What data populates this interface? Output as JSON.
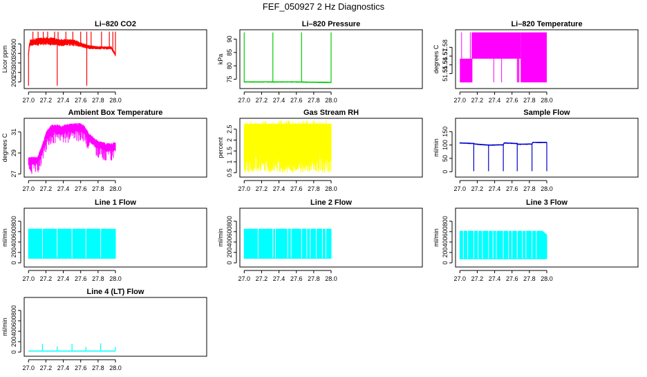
{
  "figure_title": "FEF_050927  2 Hz Diagnostics",
  "chart_data": [
    {
      "type": "line",
      "title": "Li–820 CO2",
      "xlabel": "",
      "ylabel": "Licor ppm",
      "xlim": [
        26.95,
        29.05
      ],
      "ylim": [
        165,
        475
      ],
      "xticks": [
        "27.0",
        "27.2",
        "27.4",
        "27.6",
        "27.8",
        "28.0"
      ],
      "yticks": [
        200,
        250,
        300,
        350,
        400
      ],
      "color": "#ff0000",
      "series": [
        {
          "name": "CO2",
          "x": [
            27.0,
            27.01,
            27.02,
            27.04,
            27.1,
            27.2,
            27.3,
            27.35,
            27.45,
            27.55,
            27.6,
            27.7,
            27.8,
            27.9,
            27.95,
            28.0
          ],
          "y": [
            350,
            395,
            410,
            412,
            415,
            418,
            416,
            410,
            412,
            408,
            398,
            385,
            382,
            380,
            382,
            345
          ],
          "band": [
            12,
            15,
            20,
            22,
            25,
            25,
            25,
            22,
            22,
            20,
            16,
            12,
            10,
            10,
            10,
            10
          ],
          "spikes_up": [
            27.05,
            27.11,
            27.17,
            27.22,
            27.3,
            27.34,
            27.43,
            27.51,
            27.6,
            27.67,
            27.72,
            27.84,
            27.93,
            27.97,
            28.0
          ],
          "spikes_up_top": 465,
          "spikes_down": [
            27.0,
            27.33,
            27.67
          ],
          "spikes_down_bottom": 180
        }
      ]
    },
    {
      "type": "line",
      "title": "Li–820 Pressure",
      "xlabel": "",
      "ylabel": "kPa",
      "xlim": [
        26.95,
        29.05
      ],
      "ylim": [
        71.5,
        93.5
      ],
      "xticks": [
        "27.0",
        "27.2",
        "27.4",
        "27.6",
        "27.8",
        "28.0"
      ],
      "yticks": [
        75,
        80,
        85,
        90
      ],
      "color": "#00cc00",
      "series": [
        {
          "name": "Pressure",
          "x": [
            27.0,
            27.2,
            27.4,
            27.6,
            27.8,
            28.0
          ],
          "y": [
            74.0,
            74.0,
            74.0,
            74.0,
            73.9,
            73.8
          ],
          "band": [
            0.3,
            0.3,
            0.3,
            0.3,
            0.3,
            0.3
          ],
          "spikes_up": [
            27.0,
            27.33,
            27.66,
            28.0
          ],
          "spikes_up_top": 92.5,
          "spikes_down": [],
          "spikes_down_bottom": 73
        }
      ]
    },
    {
      "type": "line",
      "title": "Li–820 Temperature",
      "xlabel": "",
      "ylabel": "degrees C",
      "xlim": [
        26.95,
        29.05
      ],
      "ylim": [
        51.533,
        51.6
      ],
      "xticks": [
        "27.0",
        "27.2",
        "27.4",
        "27.6",
        "27.8",
        "28.0"
      ],
      "yticks": [
        51.55,
        51.56,
        51.57,
        51.58
      ],
      "color": "#ff00ff",
      "series": [
        {
          "name": "Temperature",
          "low_level": 51.54,
          "high_level": 51.597,
          "mid_level": 51.567,
          "segments": [
            {
              "from": 27.0,
              "to": 27.14,
              "bottom": 51.54,
              "top": 51.567
            },
            {
              "from": 27.14,
              "to": 27.7,
              "bottom": 51.567,
              "top": 51.597
            },
            {
              "from": 27.7,
              "to": 28.0,
              "bottom": 51.54,
              "top": 51.597
            }
          ],
          "spikes_up": [
            27.02,
            27.12,
            27.14
          ],
          "spikes_down": [
            27.39,
            27.48,
            27.66,
            27.67,
            27.68
          ]
        }
      ]
    },
    {
      "type": "line",
      "title": "Ambient Box Temperature",
      "xlabel": "",
      "ylabel": "degrees C",
      "xlim": [
        26.95,
        29.05
      ],
      "ylim": [
        26.7,
        32.3
      ],
      "xticks": [
        "27.0",
        "27.2",
        "27.4",
        "27.6",
        "27.8",
        "28.0"
      ],
      "yticks": [
        27,
        29,
        31
      ],
      "color": "#ff00ff",
      "series": [
        {
          "name": "Ambient",
          "x": [
            27.0,
            27.1,
            27.15,
            27.2,
            27.25,
            27.3,
            27.4,
            27.5,
            27.6,
            27.65,
            27.7,
            27.8,
            27.9,
            28.0
          ],
          "y": [
            28.3,
            28.3,
            29.2,
            30.5,
            31.2,
            31.3,
            31.3,
            31.4,
            31.5,
            31.2,
            30.5,
            29.8,
            29.6,
            29.7
          ],
          "band": [
            0.5,
            0.5,
            0.6,
            0.7,
            0.7,
            0.6,
            0.6,
            0.6,
            0.5,
            0.5,
            0.5,
            0.5,
            0.5,
            0.5
          ]
        }
      ]
    },
    {
      "type": "line",
      "title": "Gas Stream RH",
      "xlabel": "",
      "ylabel": "percent",
      "xlim": [
        26.95,
        29.05
      ],
      "ylim": [
        0.3,
        3.0
      ],
      "xticks": [
        "27.0",
        "27.2",
        "27.4",
        "27.6",
        "27.8",
        "28.0"
      ],
      "yticks": [
        0.5,
        1.0,
        1.5,
        2.0,
        2.5
      ],
      "color": "#ffff00",
      "series": [
        {
          "name": "RH",
          "x": [
            27.0,
            28.0
          ],
          "y": [
            2.3,
            2.3
          ],
          "top": 2.75,
          "solid_bottom": 2.0,
          "low_bottom": 0.5
        }
      ]
    },
    {
      "type": "line",
      "title": "Sample Flow",
      "xlabel": "",
      "ylabel": "ml/min",
      "xlim": [
        26.95,
        29.05
      ],
      "ylim": [
        -20,
        200
      ],
      "xticks": [
        "27.0",
        "27.2",
        "27.4",
        "27.6",
        "27.8",
        "28.0"
      ],
      "yticks": [
        0,
        50,
        100,
        150
      ],
      "color": "#0000cc",
      "series": [
        {
          "name": "Sample",
          "x": [
            27.0,
            27.16,
            27.17,
            27.33,
            27.34,
            27.5,
            27.51,
            27.66,
            27.67,
            27.83,
            27.84,
            28.0
          ],
          "y": [
            108,
            106,
            104,
            100,
            100,
            101,
            108,
            106,
            103,
            104,
            110,
            110
          ],
          "band": [
            3,
            3,
            3,
            3,
            3,
            3,
            3,
            3,
            3,
            3,
            3,
            3
          ],
          "spikes_down": [
            27.16,
            27.33,
            27.5,
            27.66,
            27.83,
            28.0
          ],
          "spikes_down_bottom": 2
        }
      ]
    },
    {
      "type": "line",
      "title": "Line 1 Flow",
      "xlabel": "",
      "ylabel": "ml/min",
      "xlim": [
        26.95,
        29.05
      ],
      "ylim": [
        -80,
        1050
      ],
      "xticks": [
        "27.0",
        "27.2",
        "27.4",
        "27.6",
        "27.8",
        "28.0"
      ],
      "yticks": [
        0,
        200,
        400,
        600,
        800
      ],
      "color": "#00ffff",
      "series": [
        {
          "name": "Line 1",
          "x": [
            27.0,
            28.0
          ],
          "top": 650,
          "bottom": 80,
          "gaps": [
            27.16,
            27.33,
            27.5,
            27.66,
            27.83
          ]
        }
      ]
    },
    {
      "type": "line",
      "title": "Line 2 Flow",
      "xlabel": "",
      "ylabel": "ml/min",
      "xlim": [
        26.95,
        29.05
      ],
      "ylim": [
        -80,
        1050
      ],
      "xticks": [
        "27.0",
        "27.2",
        "27.4",
        "27.6",
        "27.8",
        "28.0"
      ],
      "yticks": [
        0,
        200,
        400,
        600,
        800
      ],
      "color": "#00ffff",
      "series": [
        {
          "name": "Line 2",
          "x": [
            27.0,
            28.0
          ],
          "top": 650,
          "bottom": 80,
          "gaps": [
            27.16,
            27.33,
            27.36,
            27.5,
            27.54,
            27.66,
            27.72,
            27.76,
            27.83,
            27.9,
            27.94
          ]
        }
      ]
    },
    {
      "type": "line",
      "title": "Line 3 Flow",
      "xlabel": "",
      "ylabel": "ml/min",
      "xlim": [
        26.95,
        29.05
      ],
      "ylim": [
        -80,
        1050
      ],
      "xticks": [
        "27.0",
        "27.2",
        "27.4",
        "27.6",
        "27.8",
        "28.0"
      ],
      "yticks": [
        0,
        200,
        400,
        600,
        800
      ],
      "color": "#00ffff",
      "series": [
        {
          "name": "Line 3",
          "x": [
            27.0,
            28.0
          ],
          "top": 610,
          "bottom": 70,
          "top_end": 540,
          "gaps": [
            27.04,
            27.09,
            27.16,
            27.21,
            27.26,
            27.33,
            27.38,
            27.42,
            27.5,
            27.56,
            27.6,
            27.66,
            27.72,
            27.76,
            27.83,
            27.88
          ]
        }
      ]
    },
    {
      "type": "line",
      "title": "Line 4 (LT) Flow",
      "xlabel": "",
      "ylabel": "ml/min",
      "xlim": [
        26.95,
        29.05
      ],
      "ylim": [
        -80,
        1050
      ],
      "xticks": [
        "27.0",
        "27.2",
        "27.4",
        "27.6",
        "27.8",
        "28.0"
      ],
      "yticks": [
        0,
        200,
        400,
        600,
        800
      ],
      "color": "#00ffff",
      "series": [
        {
          "name": "Line 4",
          "x": [
            27.0,
            28.0
          ],
          "y": [
            20,
            20
          ],
          "spikes_up": [
            27.16,
            27.33,
            27.5,
            27.66,
            27.83,
            28.0
          ],
          "spike_tops": [
            160,
            110,
            160,
            100,
            170,
            100
          ]
        }
      ]
    }
  ]
}
